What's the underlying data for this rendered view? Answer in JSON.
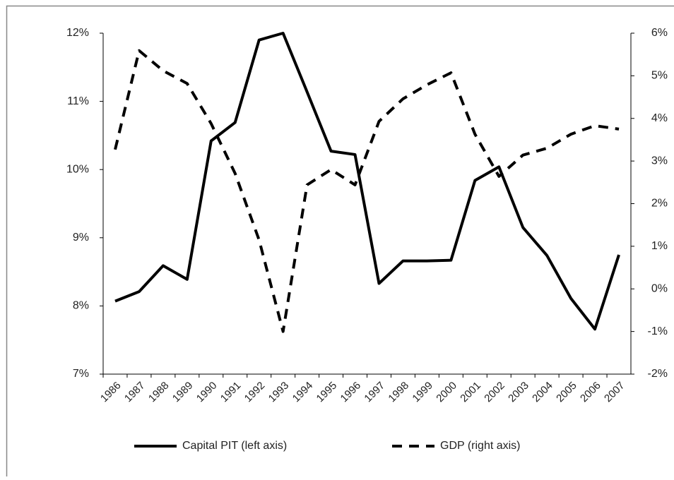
{
  "chart_data": {
    "type": "line",
    "categories": [
      "1986",
      "1987",
      "1988",
      "1989",
      "1990",
      "1991",
      "1992",
      "1993",
      "1994",
      "1995",
      "1996",
      "1997",
      "1998",
      "1999",
      "2000",
      "2001",
      "2002",
      "2003",
      "2004",
      "2005",
      "2006",
      "2007"
    ],
    "series": [
      {
        "name": "Capital PIT (left axis)",
        "color": "#000000",
        "dash": "solid",
        "values": [
          8.07,
          8.21,
          8.59,
          8.39,
          10.42,
          10.69,
          11.9,
          12.0,
          11.14,
          10.27,
          10.22,
          8.33,
          8.66,
          8.66,
          8.67,
          9.84,
          10.04,
          9.15,
          8.74,
          8.11,
          7.66,
          8.75
        ]
      },
      {
        "name": "GDP (right axis)",
        "color": "#000000",
        "dash": "dashed",
        "axis": "y2",
        "values": [
          3.27,
          5.59,
          5.12,
          4.82,
          3.88,
          2.71,
          1.15,
          -1.0,
          2.44,
          2.8,
          2.44,
          3.93,
          4.46,
          4.79,
          5.07,
          3.63,
          2.64,
          3.14,
          3.3,
          3.63,
          3.83,
          3.75
        ]
      }
    ],
    "ylim": [
      7,
      12
    ],
    "yticks": [
      {
        "value": 7,
        "label": "7%"
      },
      {
        "value": 8,
        "label": "8%"
      },
      {
        "value": 9,
        "label": "9%"
      },
      {
        "value": 10,
        "label": "10%"
      },
      {
        "value": 11,
        "label": "11%"
      },
      {
        "value": 12,
        "label": "12%"
      }
    ],
    "y2lim": [
      -2,
      6
    ],
    "y2ticks": [
      {
        "value": -2,
        "label": "-2%"
      },
      {
        "value": -1,
        "label": "-1%"
      },
      {
        "value": 0,
        "label": "0%"
      },
      {
        "value": 1,
        "label": "1%"
      },
      {
        "value": 2,
        "label": "2%"
      },
      {
        "value": 3,
        "label": "3%"
      },
      {
        "value": 4,
        "label": "4%"
      },
      {
        "value": 5,
        "label": "5%"
      },
      {
        "value": 6,
        "label": "6%"
      }
    ],
    "grid": false,
    "legend": "bottom"
  }
}
